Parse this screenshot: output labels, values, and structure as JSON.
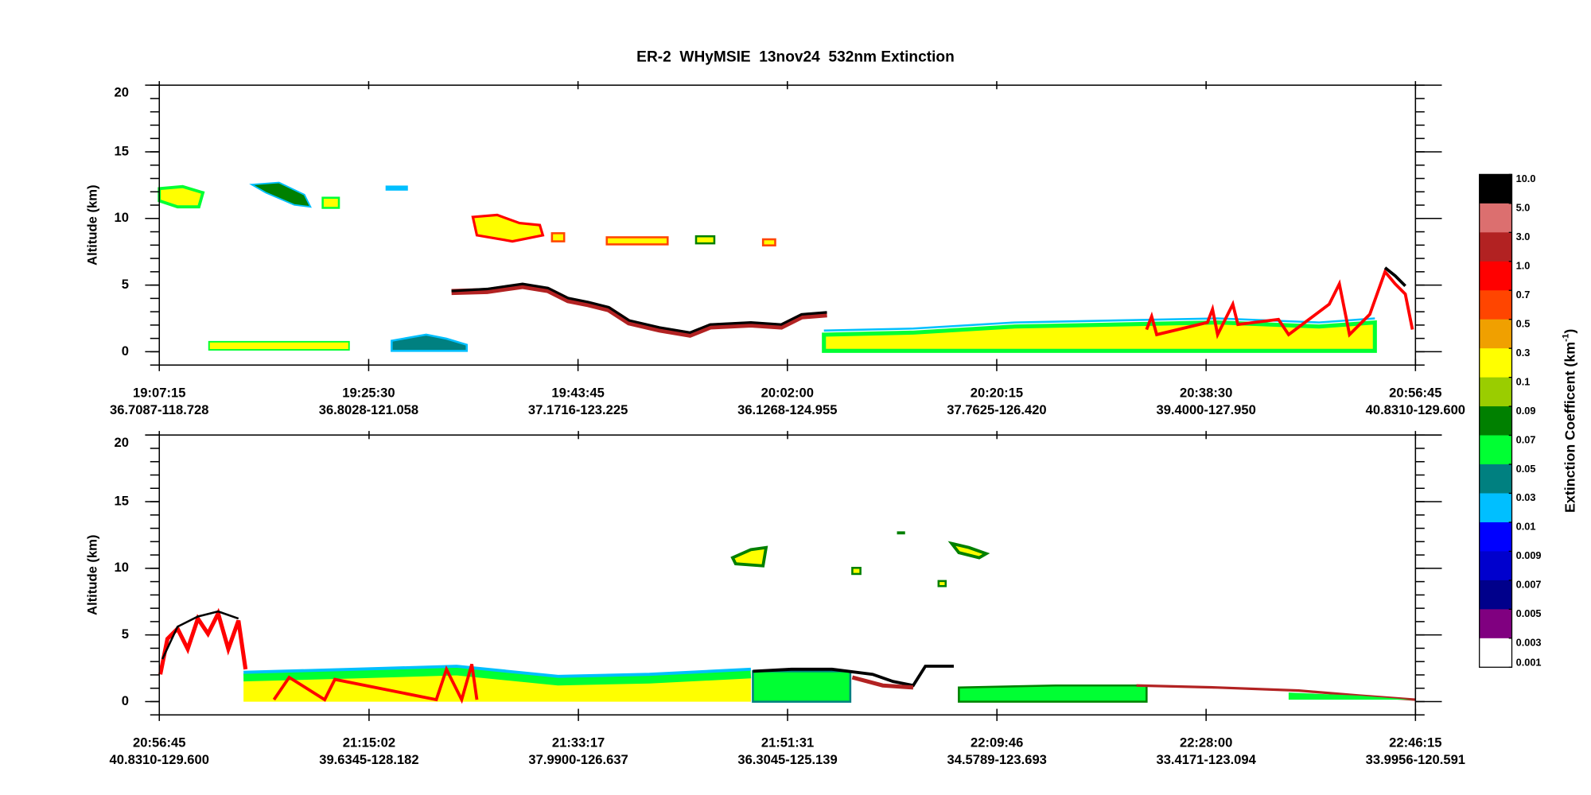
{
  "chart_data": [
    {
      "type": "curtain",
      "title": "ER-2  WHyMSIE  13nov24  532nm Extinction",
      "ylabel": "Altitude (km)",
      "ylim": [
        -1,
        20
      ],
      "yticks": [
        0,
        5,
        10,
        15,
        20
      ],
      "y_minor_step": 1,
      "xlim": [
        "19:07:15",
        "20:56:45"
      ],
      "xticks": [
        {
          "time": "19:07:15",
          "location": "36.7087-118.728"
        },
        {
          "time": "19:25:30",
          "location": "36.8028-121.058"
        },
        {
          "time": "19:43:45",
          "location": "37.1716-123.225"
        },
        {
          "time": "20:02:00",
          "location": "36.1268-124.955"
        },
        {
          "time": "20:20:15",
          "location": "37.7625-126.420"
        },
        {
          "time": "20:38:30",
          "location": "39.4000-127.950"
        },
        {
          "time": "20:56:45",
          "location": "40.8310-129.600"
        }
      ]
    },
    {
      "type": "curtain",
      "ylabel": "Altitude (km)",
      "ylim": [
        -1,
        20
      ],
      "yticks": [
        0,
        5,
        10,
        15,
        20
      ],
      "y_minor_step": 1,
      "xlim": [
        "20:56:45",
        "22:46:15"
      ],
      "xticks": [
        {
          "time": "20:56:45",
          "location": "40.8310-129.600"
        },
        {
          "time": "21:15:02",
          "location": "39.6345-128.182"
        },
        {
          "time": "21:33:17",
          "location": "37.9900-126.637"
        },
        {
          "time": "21:51:31",
          "location": "36.3045-125.139"
        },
        {
          "time": "22:09:46",
          "location": "34.5789-123.693"
        },
        {
          "time": "22:28:00",
          "location": "33.4171-123.094"
        },
        {
          "time": "22:46:15",
          "location": "33.9956-120.591"
        }
      ]
    },
    {
      "type": "colorbar",
      "label": "Extinction Coefficent (km",
      "label_exponent": "-1",
      "label_end": ")",
      "ticks": [
        {
          "value": 10,
          "label": "10.0"
        },
        {
          "value": 5,
          "label": "5.0"
        },
        {
          "value": 3,
          "label": "3.0"
        },
        {
          "value": 1,
          "label": "1.0"
        },
        0.7,
        0.5,
        0.3,
        0.1,
        0.09,
        0.07,
        0.05,
        0.03,
        0.01,
        0.009,
        0.007,
        0.005,
        0.003,
        0.001
      ],
      "colors": [
        "#000000",
        "#dc6f6f",
        "#b22222",
        "#ff0000",
        "#ff4500",
        "#f0a000",
        "#ffff00",
        "#9acd00",
        "#008000",
        "#00ff33",
        "#008080",
        "#00bfff",
        "#0000ff",
        "#0000cd",
        "#00008b",
        "#800080",
        "#ffffff"
      ]
    }
  ]
}
